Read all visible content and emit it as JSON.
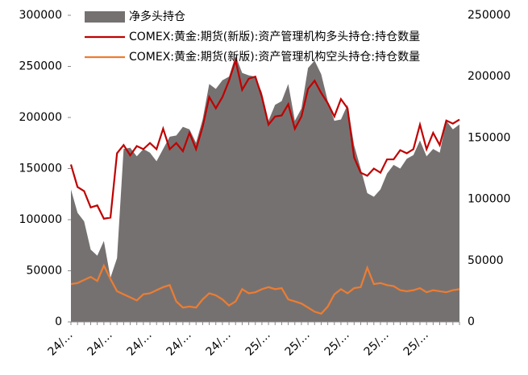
{
  "chart_data": {
    "type": "area-line",
    "categories": [
      "24/…",
      null,
      null,
      null,
      null,
      null,
      "24/…",
      null,
      null,
      null,
      null,
      null,
      "24/…",
      null,
      null,
      null,
      null,
      null,
      "24/…",
      null,
      null,
      null,
      null,
      null,
      "24/…",
      null,
      null,
      null,
      null,
      null,
      "25/…",
      null,
      null,
      null,
      null,
      null,
      "25/…",
      null,
      null,
      null,
      null,
      null,
      "25/…",
      null,
      null,
      null,
      null,
      null,
      "25/…",
      null,
      null,
      null,
      null,
      null,
      "25/…",
      null,
      null,
      null,
      null,
      null
    ],
    "series": [
      {
        "name": "净多头持仓",
        "type": "area",
        "axis": "y2",
        "color": "#767171",
        "values": [
          108000,
          89000,
          82000,
          59000,
          54000,
          66000,
          36000,
          52000,
          141000,
          142000,
          135000,
          141000,
          138000,
          131000,
          141000,
          151000,
          152000,
          159000,
          157000,
          146000,
          165000,
          194000,
          190000,
          197000,
          200000,
          217000,
          203000,
          201000,
          200000,
          187000,
          164000,
          177000,
          180000,
          194000,
          164000,
          174000,
          207000,
          213000,
          202000,
          180000,
          164000,
          165000,
          177000,
          144000,
          125000,
          105000,
          102000,
          108000,
          121000,
          128000,
          125000,
          133000,
          136000,
          148000,
          135000,
          141000,
          138000,
          164000,
          157000,
          161000
        ]
      },
      {
        "name": "COMEX:黄金:期货(新版):资产管理机构多头持仓:持仓数量",
        "type": "line",
        "color": "#c00000",
        "values": [
          154000,
          132000,
          128000,
          112000,
          114000,
          101000,
          102000,
          165000,
          173000,
          163000,
          172000,
          169000,
          175000,
          169000,
          189000,
          169000,
          175000,
          167000,
          185000,
          169000,
          191000,
          220000,
          209000,
          220000,
          236000,
          256000,
          227000,
          238000,
          240000,
          220000,
          193000,
          201000,
          202000,
          213000,
          189000,
          201000,
          228000,
          236000,
          224000,
          214000,
          201000,
          218000,
          209000,
          161000,
          146000,
          143000,
          150000,
          146000,
          159000,
          159000,
          168000,
          165000,
          169000,
          193000,
          169000,
          185000,
          173000,
          197000,
          194000,
          198000
        ]
      },
      {
        "name": "COMEX:黄金:期货(新版):资产管理机构空头持仓:持仓数量",
        "type": "line",
        "color": "#ed7d31",
        "values": [
          37000,
          38000,
          41000,
          44000,
          40000,
          55000,
          42000,
          30000,
          27000,
          24000,
          21000,
          27000,
          28000,
          31000,
          34000,
          36000,
          20000,
          14000,
          15000,
          14000,
          22000,
          28000,
          26000,
          22000,
          16000,
          20000,
          32000,
          28000,
          29000,
          32000,
          34000,
          32000,
          33000,
          22000,
          20000,
          18000,
          14000,
          10000,
          8000,
          15000,
          27000,
          32000,
          28000,
          33000,
          34000,
          53000,
          37000,
          38000,
          36000,
          35000,
          31000,
          30000,
          31000,
          33000,
          29000,
          31000,
          30000,
          29000,
          31000,
          32000
        ]
      }
    ],
    "ylim": [
      0,
      300000
    ],
    "yticks": [
      0,
      50000,
      100000,
      150000,
      200000,
      250000,
      300000
    ],
    "y2lim": [
      0,
      250000
    ],
    "y2ticks": [
      0,
      50000,
      100000,
      150000,
      200000,
      250000
    ],
    "legend": "top"
  }
}
